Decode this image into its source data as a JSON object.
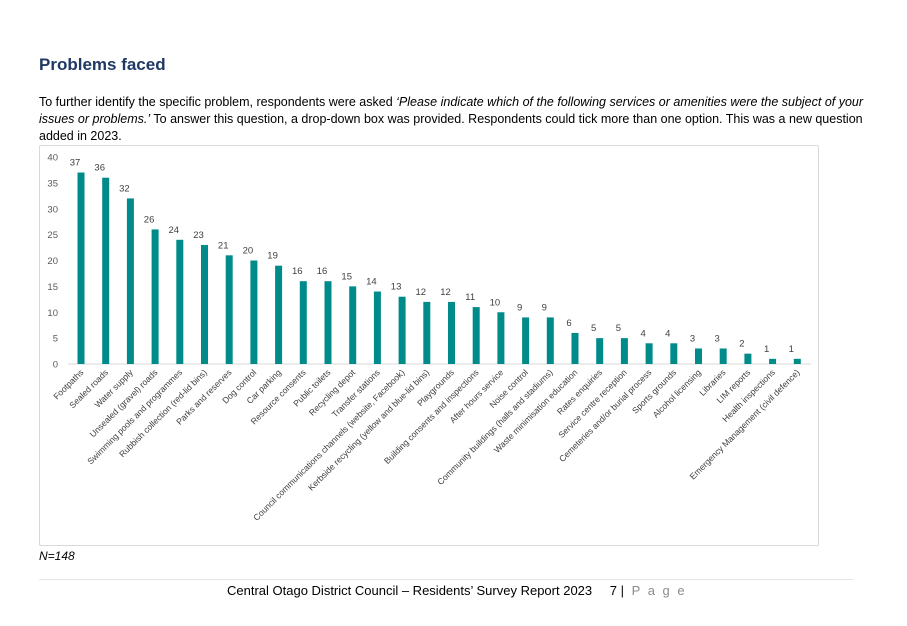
{
  "heading": "Problems faced",
  "intro": {
    "part1": "To further identify the specific problem, respondents were asked ",
    "quote": "‘Please indicate which of the following services or amenities were the subject of your issues or problems.’",
    "part2": " To answer this question, a drop-down box was provided.  Respondents could tick more than one option.  This was a new question added in 2023."
  },
  "note": "N=148",
  "footer": {
    "report": "Central Otago District Council – Residents’ Survey Report 2023",
    "page_number": "7",
    "separator": "|",
    "page_word": "P a g e"
  },
  "chart_data": {
    "type": "bar",
    "bar_color": "#008b8b",
    "ylim": [
      0,
      40
    ],
    "yticks": [
      0,
      5,
      10,
      15,
      20,
      25,
      30,
      35,
      40
    ],
    "grid": false,
    "categories": [
      "Footpaths",
      "Sealed roads",
      "Water supply",
      "Unsealed (gravel) roads",
      "Swimming pools and programmes",
      "Rubbish collection (red-lid bins)",
      "Parks and reserves",
      "Dog control",
      "Car parking",
      "Resource consents",
      "Public toilets",
      "Recycling depot",
      "Transfer stations",
      "Council communications channels (website, Facebook)",
      "Kerbside recycling (yellow and blue-lid bins)",
      "Playgrounds",
      "Building consents and inspections",
      "After hours service",
      "Noise control",
      "Community buildings (halls and stadiums)",
      "Waste minimisation education",
      "Rates enquiries",
      "Service centre reception",
      "Cemeteries and/or burial process",
      "Sports grounds",
      "Alcohol licensing",
      "Libraries",
      "LIM reports",
      "Health inspections",
      "Emergency Management (civil defence)"
    ],
    "values": [
      37,
      36,
      32,
      26,
      24,
      23,
      21,
      20,
      19,
      16,
      16,
      15,
      14,
      13,
      12,
      12,
      11,
      10,
      9,
      9,
      6,
      5,
      5,
      4,
      4,
      3,
      3,
      2,
      1,
      1
    ]
  }
}
